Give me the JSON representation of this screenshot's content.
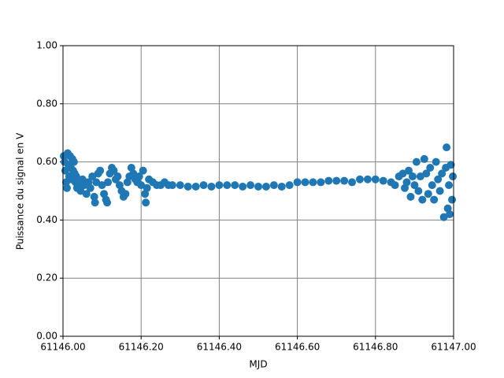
{
  "chart_data": {
    "type": "scatter",
    "xlabel": "MJD",
    "ylabel": "Puissance du signal en V",
    "xlim": [
      61146.0,
      61147.0
    ],
    "xticks": [
      {
        "value": 61146.0,
        "label": "61146.00"
      },
      {
        "value": 61146.2,
        "label": "61146.20"
      },
      {
        "value": 61146.4,
        "label": "61146.40"
      },
      {
        "value": 61146.6,
        "label": "61146.60"
      },
      {
        "value": 61146.8,
        "label": "61146.80"
      },
      {
        "value": 61147.0,
        "label": "61147.00"
      }
    ],
    "ylim": [
      0,
      1
    ],
    "yticks": [
      {
        "value": 0,
        "label": "0.00"
      },
      {
        "value": 0.2,
        "label": "0.20"
      },
      {
        "value": 0.4,
        "label": "0.40"
      },
      {
        "value": 0.6,
        "label": "0.60"
      },
      {
        "value": 0.8,
        "label": "0.80"
      },
      {
        "value": 1,
        "label": "1.00"
      }
    ],
    "grid": true,
    "color": "#1f77b4",
    "x": [
      61146.002,
      61146.004,
      61146.006,
      61146.008,
      61146.01,
      61146.012,
      61146.014,
      61146.016,
      61146.018,
      61146.02,
      61146.022,
      61146.024,
      61146.026,
      61146.028,
      61146.03,
      61146.032,
      61146.034,
      61146.036,
      61146.04,
      61146.045,
      61146.05,
      61146.055,
      61146.06,
      61146.065,
      61146.07,
      61146.075,
      61146.08,
      61146.082,
      61146.085,
      61146.09,
      61146.095,
      61146.1,
      61146.105,
      61146.11,
      61146.113,
      61146.115,
      61146.12,
      61146.125,
      61146.13,
      61146.135,
      61146.14,
      61146.145,
      61146.15,
      61146.155,
      61146.16,
      61146.165,
      61146.17,
      61146.175,
      61146.18,
      61146.185,
      61146.19,
      61146.195,
      61146.2,
      61146.205,
      61146.21,
      61146.212,
      61146.215,
      61146.22,
      61146.23,
      61146.24,
      61146.25,
      61146.26,
      61146.27,
      61146.28,
      61146.3,
      61146.32,
      61146.34,
      61146.36,
      61146.38,
      61146.4,
      61146.42,
      61146.44,
      61146.46,
      61146.48,
      61146.5,
      61146.52,
      61146.54,
      61146.56,
      61146.58,
      61146.6,
      61146.62,
      61146.64,
      61146.66,
      61146.68,
      61146.7,
      61146.72,
      61146.74,
      61146.76,
      61146.78,
      61146.8,
      61146.82,
      61146.84,
      61146.85,
      61146.86,
      61146.87,
      61146.875,
      61146.88,
      61146.885,
      61146.89,
      61146.895,
      61146.9,
      61146.905,
      61146.91,
      61146.915,
      61146.92,
      61146.925,
      61146.93,
      61146.935,
      61146.94,
      61146.945,
      61146.95,
      61146.955,
      61146.96,
      61146.965,
      61146.97,
      61146.975,
      61146.98,
      61146.982,
      61146.985,
      61146.988,
      61146.99,
      61146.993,
      61146.996,
      61146.998
    ],
    "y": [
      0.62,
      0.6,
      0.57,
      0.53,
      0.51,
      0.63,
      0.59,
      0.55,
      0.62,
      0.58,
      0.54,
      0.61,
      0.57,
      0.6,
      0.56,
      0.53,
      0.55,
      0.51,
      0.52,
      0.5,
      0.54,
      0.52,
      0.49,
      0.53,
      0.51,
      0.55,
      0.48,
      0.46,
      0.53,
      0.56,
      0.57,
      0.52,
      0.49,
      0.47,
      0.46,
      0.53,
      0.56,
      0.58,
      0.57,
      0.54,
      0.55,
      0.52,
      0.5,
      0.48,
      0.49,
      0.53,
      0.55,
      0.58,
      0.56,
      0.54,
      0.53,
      0.55,
      0.52,
      0.57,
      0.49,
      0.46,
      0.51,
      0.54,
      0.53,
      0.52,
      0.52,
      0.53,
      0.52,
      0.52,
      0.52,
      0.515,
      0.515,
      0.52,
      0.515,
      0.52,
      0.52,
      0.52,
      0.515,
      0.52,
      0.515,
      0.515,
      0.52,
      0.515,
      0.52,
      0.53,
      0.53,
      0.53,
      0.53,
      0.535,
      0.535,
      0.535,
      0.53,
      0.54,
      0.54,
      0.54,
      0.535,
      0.53,
      0.52,
      0.55,
      0.56,
      0.51,
      0.53,
      0.57,
      0.48,
      0.55,
      0.52,
      0.6,
      0.5,
      0.55,
      0.47,
      0.61,
      0.56,
      0.49,
      0.58,
      0.52,
      0.47,
      0.6,
      0.54,
      0.5,
      0.56,
      0.41,
      0.58,
      0.65,
      0.44,
      0.52,
      0.42,
      0.59,
      0.47,
      0.55
    ]
  }
}
